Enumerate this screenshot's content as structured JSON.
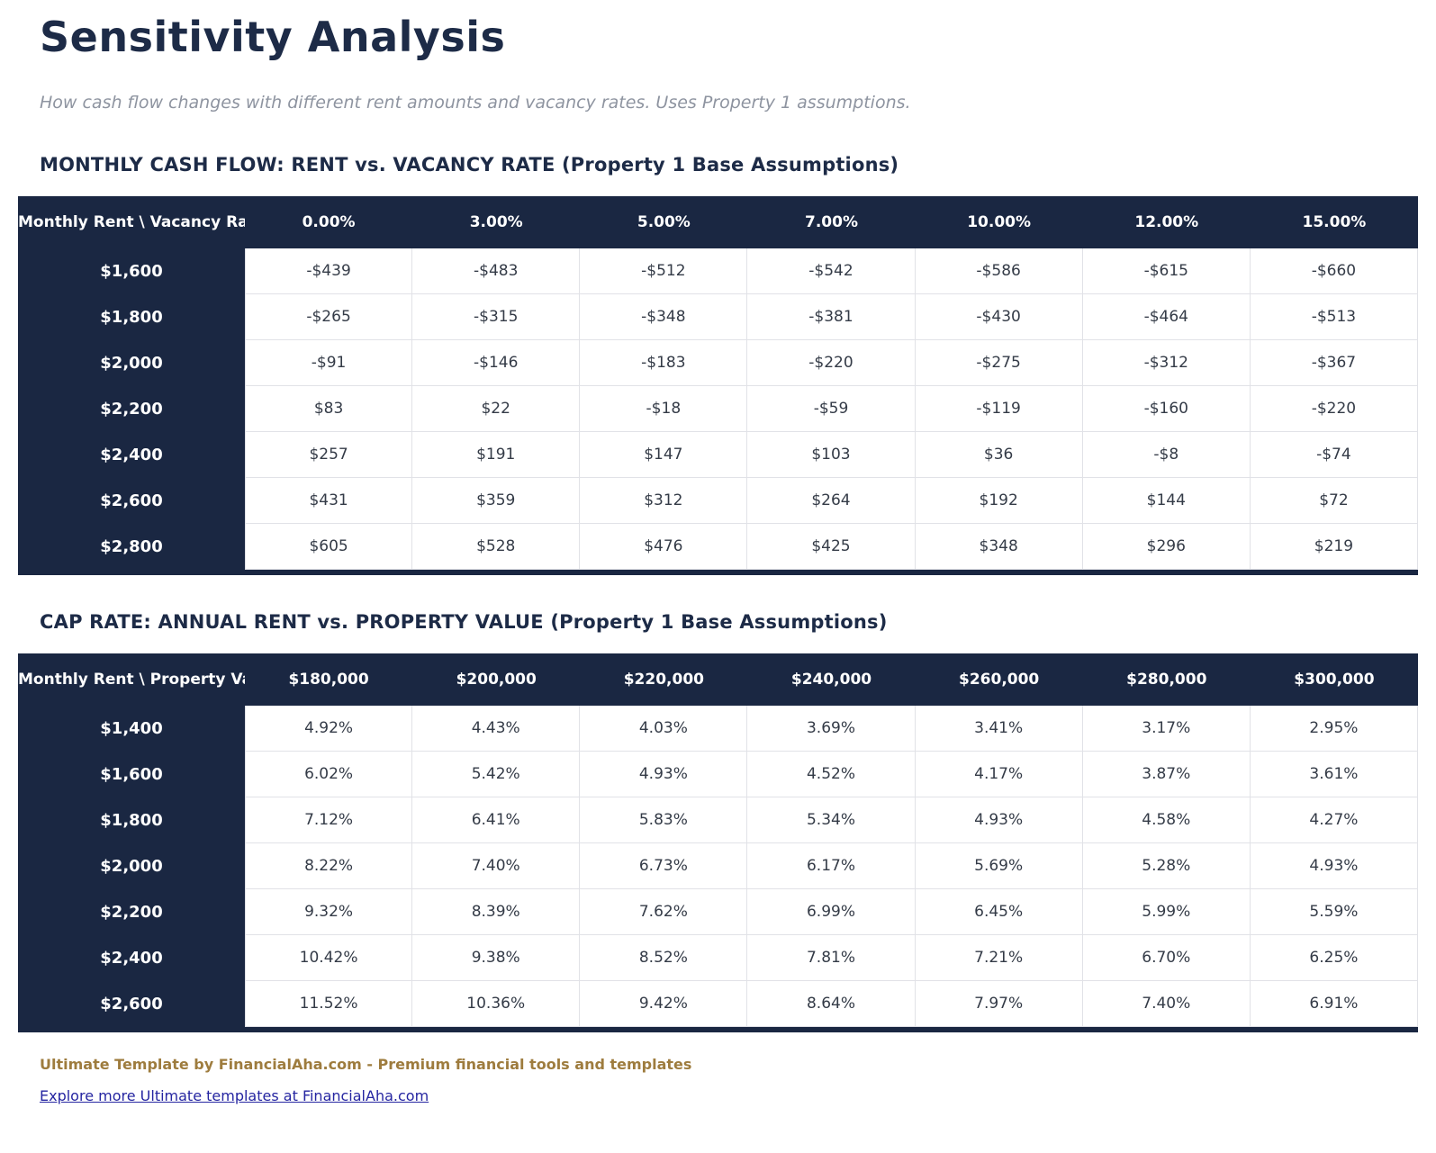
{
  "page": {
    "title": "Sensitivity Analysis",
    "subtitle": "How cash flow changes with different rent amounts and vacancy rates. Uses Property 1 assumptions."
  },
  "colors": {
    "table_navy": "#1a2742",
    "heading_navy": "#1d2b47",
    "cell_text": "#343b47",
    "cell_border": "#e1e2e7",
    "subtitle_gray": "#8e94a0",
    "brand_gold": "#9e7c3e",
    "link_blue": "#2525a1"
  },
  "tables": [
    {
      "section_title": "MONTHLY CASH FLOW: RENT vs. VACANCY RATE (Property 1 Base Assumptions)",
      "corner_label": "Monthly Rent \\ Vacancy Rate",
      "columns": [
        "0.00%",
        "3.00%",
        "5.00%",
        "7.00%",
        "10.00%",
        "12.00%",
        "15.00%"
      ],
      "rows": [
        {
          "label": "$1,600",
          "values": [
            "-$439",
            "-$483",
            "-$512",
            "-$542",
            "-$586",
            "-$615",
            "-$660"
          ]
        },
        {
          "label": "$1,800",
          "values": [
            "-$265",
            "-$315",
            "-$348",
            "-$381",
            "-$430",
            "-$464",
            "-$513"
          ]
        },
        {
          "label": "$2,000",
          "values": [
            "-$91",
            "-$146",
            "-$183",
            "-$220",
            "-$275",
            "-$312",
            "-$367"
          ]
        },
        {
          "label": "$2,200",
          "values": [
            "$83",
            "$22",
            "-$18",
            "-$59",
            "-$119",
            "-$160",
            "-$220"
          ]
        },
        {
          "label": "$2,400",
          "values": [
            "$257",
            "$191",
            "$147",
            "$103",
            "$36",
            "-$8",
            "-$74"
          ]
        },
        {
          "label": "$2,600",
          "values": [
            "$431",
            "$359",
            "$312",
            "$264",
            "$192",
            "$144",
            "$72"
          ]
        },
        {
          "label": "$2,800",
          "values": [
            "$605",
            "$528",
            "$476",
            "$425",
            "$348",
            "$296",
            "$219"
          ]
        }
      ]
    },
    {
      "section_title": "CAP RATE: ANNUAL RENT vs. PROPERTY VALUE (Property 1 Base Assumptions)",
      "corner_label": "Monthly Rent \\ Property Value",
      "columns": [
        "$180,000",
        "$200,000",
        "$220,000",
        "$240,000",
        "$260,000",
        "$280,000",
        "$300,000"
      ],
      "rows": [
        {
          "label": "$1,400",
          "values": [
            "4.92%",
            "4.43%",
            "4.03%",
            "3.69%",
            "3.41%",
            "3.17%",
            "2.95%"
          ]
        },
        {
          "label": "$1,600",
          "values": [
            "6.02%",
            "5.42%",
            "4.93%",
            "4.52%",
            "4.17%",
            "3.87%",
            "3.61%"
          ]
        },
        {
          "label": "$1,800",
          "values": [
            "7.12%",
            "6.41%",
            "5.83%",
            "5.34%",
            "4.93%",
            "4.58%",
            "4.27%"
          ]
        },
        {
          "label": "$2,000",
          "values": [
            "8.22%",
            "7.40%",
            "6.73%",
            "6.17%",
            "5.69%",
            "5.28%",
            "4.93%"
          ]
        },
        {
          "label": "$2,200",
          "values": [
            "9.32%",
            "8.39%",
            "7.62%",
            "6.99%",
            "6.45%",
            "5.99%",
            "5.59%"
          ]
        },
        {
          "label": "$2,400",
          "values": [
            "10.42%",
            "9.38%",
            "8.52%",
            "7.81%",
            "7.21%",
            "6.70%",
            "6.25%"
          ]
        },
        {
          "label": "$2,600",
          "values": [
            "11.52%",
            "10.36%",
            "9.42%",
            "8.64%",
            "7.97%",
            "7.40%",
            "6.91%"
          ]
        }
      ]
    }
  ],
  "footer": {
    "brand_line": "Ultimate Template by FinancialAha.com - Premium financial tools and templates",
    "link_text": "Explore more Ultimate templates at FinancialAha.com"
  }
}
